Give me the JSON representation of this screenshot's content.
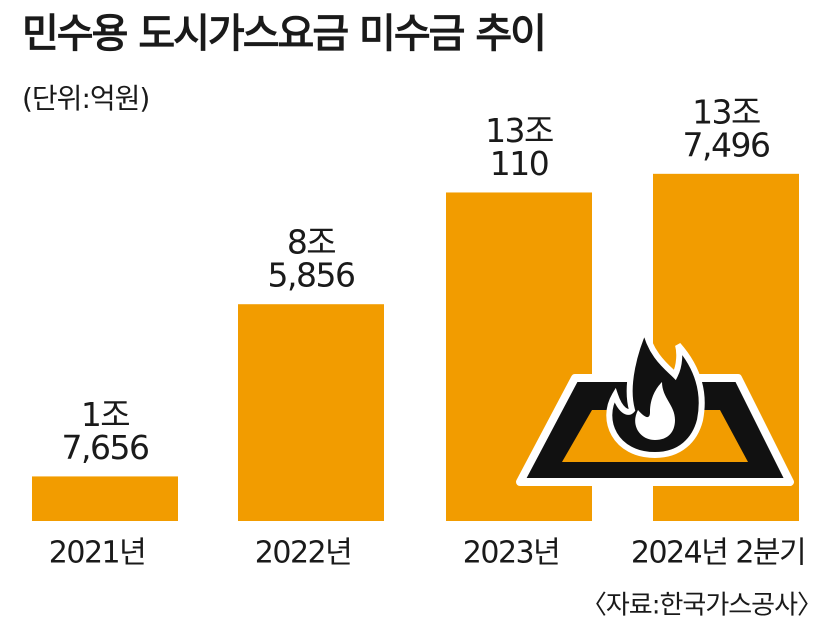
{
  "chart_data": {
    "type": "bar",
    "title": "민수용 도시가스요금 미수금 추이",
    "subtitle": "(단위:억원)",
    "categories": [
      "2021년",
      "2022년",
      "2023년",
      "2024년 2분기"
    ],
    "values": [
      17656,
      85856,
      130110,
      137496
    ],
    "value_labels": [
      [
        "1조",
        "7,656"
      ],
      [
        "8조",
        "5,856"
      ],
      [
        "13조",
        "110"
      ],
      [
        "13조",
        "7,496"
      ]
    ],
    "color": "#f29c00",
    "ylim": [
      0,
      160000
    ],
    "source": "〈자료:한국가스공사〉"
  }
}
